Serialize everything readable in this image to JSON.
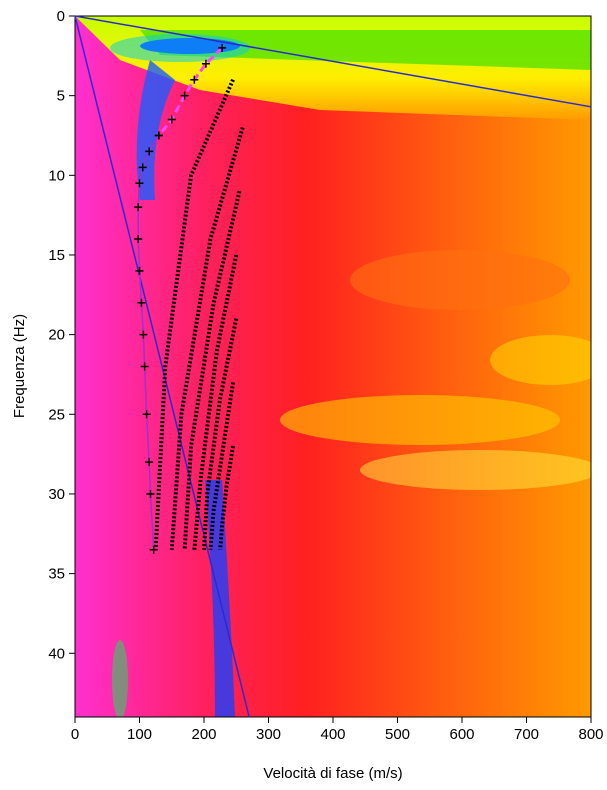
{
  "chart_data": {
    "type": "line",
    "xlabel": "Velocità di fase (m/s)",
    "ylabel": "Frequenza (Hz)",
    "xlim": [
      0,
      800
    ],
    "ylim": [
      0,
      44
    ],
    "y_inverted": true,
    "xticks": [
      0,
      100,
      200,
      300,
      400,
      500,
      600,
      700,
      800
    ],
    "yticks": [
      0,
      5,
      10,
      15,
      20,
      25,
      30,
      35,
      40
    ],
    "series": [
      {
        "color": "#2a2ad0",
        "style": "solid",
        "x": [
          0,
          800
        ],
        "y": [
          0,
          5.7
        ]
      },
      {
        "color": "#2a2ad0",
        "style": "solid",
        "x": [
          0,
          270
        ],
        "y": [
          0,
          44
        ]
      },
      {
        "color": "#ff44ff",
        "style": "dashed",
        "marker": "+",
        "x": [
          228,
          203,
          185,
          170,
          150,
          130
        ],
        "y": [
          2,
          3,
          4,
          5,
          6.5,
          7.5
        ]
      },
      {
        "color": "#9933cc",
        "style": "solid",
        "marker": "+",
        "x": [
          130,
          115,
          105,
          100,
          98,
          98,
          100,
          103,
          106,
          108,
          111,
          115,
          117,
          122
        ],
        "y": [
          7.5,
          8.5,
          9.5,
          10.5,
          12,
          14,
          16,
          18,
          20,
          22,
          25,
          28,
          30,
          33.5
        ]
      },
      {
        "color": "#000000",
        "style": "dotted",
        "x": [
          245,
          180,
          140,
          125
        ],
        "y": [
          4,
          10,
          22,
          33.5
        ]
      },
      {
        "color": "#000000",
        "style": "dotted",
        "x": [
          260,
          210,
          165,
          150
        ],
        "y": [
          7,
          14,
          25,
          33.5
        ]
      },
      {
        "color": "#000000",
        "style": "dotted",
        "x": [
          255,
          215,
          180,
          170
        ],
        "y": [
          11,
          18,
          27,
          33.5
        ]
      },
      {
        "color": "#000000",
        "style": "dotted",
        "x": [
          250,
          220,
          195,
          185
        ],
        "y": [
          15,
          21,
          29,
          33.5
        ]
      },
      {
        "color": "#000000",
        "style": "dotted",
        "x": [
          250,
          225,
          205,
          200
        ],
        "y": [
          19,
          24,
          30,
          33.5
        ]
      },
      {
        "color": "#000000",
        "style": "dotted",
        "x": [
          245,
          230,
          215,
          210
        ],
        "y": [
          23,
          27,
          31,
          33.5
        ]
      },
      {
        "color": "#000000",
        "style": "dotted",
        "x": [
          245,
          235,
          228,
          225
        ],
        "y": [
          27,
          29.5,
          32,
          33.5
        ]
      }
    ]
  }
}
